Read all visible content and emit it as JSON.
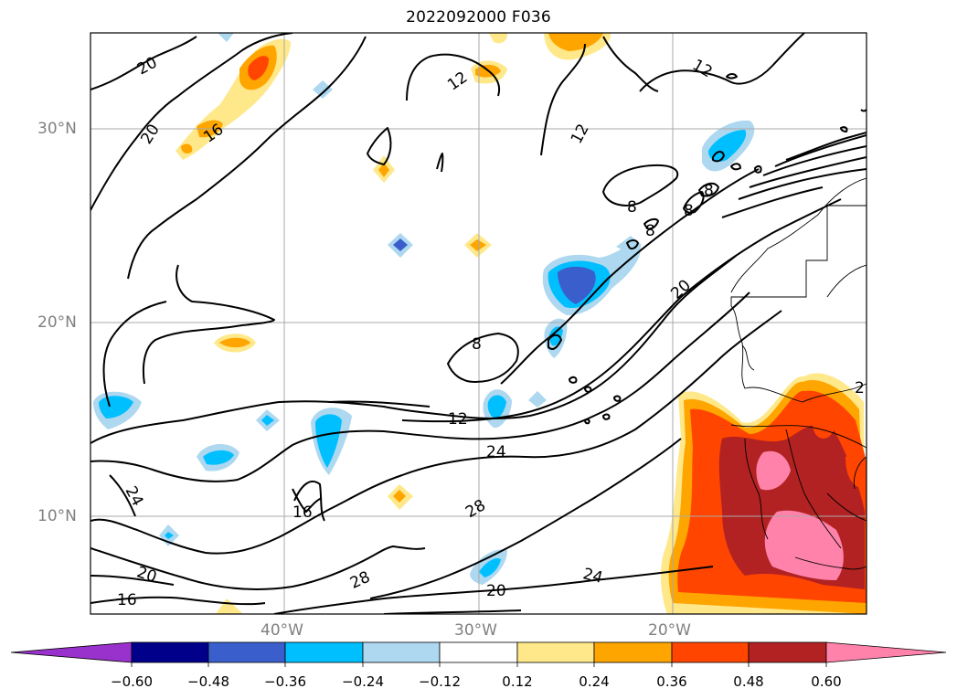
{
  "title": "2022092000 F036",
  "map": {
    "lat_labels": [
      "30°N",
      "20°N",
      "10°N"
    ],
    "lon_labels": [
      "40°W",
      "30°W",
      "20°W"
    ],
    "contour_labels": [
      "20",
      "20",
      "16",
      "12",
      "12",
      "12",
      "8",
      "8",
      "8",
      "8",
      "20",
      "2",
      "8",
      "12",
      "24",
      "28",
      "24",
      "16",
      "24",
      "20",
      "28",
      "20",
      "16"
    ],
    "grid_color": "#a9a9a9"
  },
  "colorbar": {
    "tick_labels": [
      "−0.60",
      "−0.48",
      "−0.36",
      "−0.24",
      "−0.12",
      "0.12",
      "0.24",
      "0.36",
      "0.48",
      "0.60"
    ],
    "colors": [
      "#9932cc",
      "#00008b",
      "#3a5fcd",
      "#00bfff",
      "#add8f0",
      "#ffffff",
      "#ffe88a",
      "#ffa500",
      "#ff4500",
      "#b22222",
      "#ff82ab"
    ]
  }
}
